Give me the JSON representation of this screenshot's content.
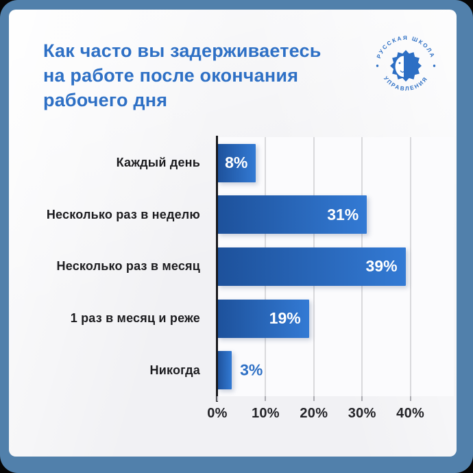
{
  "header": {
    "title_lines": [
      "Как часто вы задерживаетесь",
      "на работе после окончания",
      "рабочего дня"
    ]
  },
  "logo": {
    "top_text": "РУССКАЯ ШКОЛА",
    "bottom_text": "УПРАВЛЕНИЯ"
  },
  "chart_data": {
    "type": "bar",
    "orientation": "horizontal",
    "title": "Как часто вы задерживаетесь на работе после окончания рабочего дня",
    "categories": [
      "Каждый день",
      "Несколько раз в неделю",
      "Несколько раз в месяц",
      "1 раз в месяц и реже",
      "Никогда"
    ],
    "values": [
      8,
      31,
      39,
      19,
      3
    ],
    "value_labels": [
      "8%",
      "31%",
      "39%",
      "19%",
      "3%"
    ],
    "x_ticks": [
      "0%",
      "10%",
      "20%",
      "30%",
      "40%"
    ],
    "x_tick_values": [
      0,
      10,
      20,
      30,
      40
    ],
    "xlim": [
      0,
      49
    ],
    "grid": true,
    "legend": false
  },
  "colors": {
    "frame_blue": "#5180ab",
    "title_blue": "#2e70c5",
    "bar_gradient_start": "#1d519b",
    "bar_gradient_end": "#337ad4",
    "value_outside_blue": "#2e70c5",
    "category_text": "#1b1b1e",
    "gridline": "#d9d9dc",
    "axis_line": "#17171a",
    "plot_background": "#fbfbfd"
  }
}
